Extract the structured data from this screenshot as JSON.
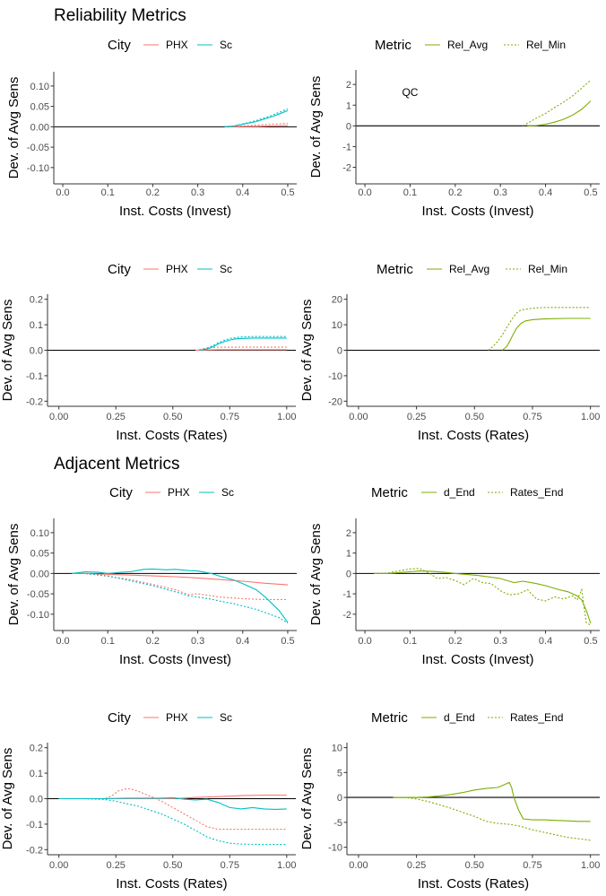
{
  "titles": [
    {
      "text": "Reliability Metrics"
    },
    {
      "text": "Adjacent Metrics"
    }
  ],
  "colors": {
    "PHX": "#F8766D",
    "Sc": "#00BFC4",
    "metric": "#7CAE00",
    "zero_line": "#000000",
    "axis": "#333333"
  },
  "chart_data": [
    {
      "type": "line",
      "panel": "reliability-invest-city",
      "xlabel": "Inst. Costs (Invest)",
      "ylabel": "Dev. of Avg Sens",
      "xlim": [
        -0.02,
        0.52
      ],
      "ylim": [
        -0.14,
        0.135
      ],
      "xticks": [
        "0.0",
        "0.1",
        "0.2",
        "0.3",
        "0.4",
        "0.5"
      ],
      "yticks": [
        "-0.10",
        "-0.05",
        "0.00",
        "0.05",
        "0.10"
      ],
      "legend": {
        "title": "City",
        "entries": [
          "PHX",
          "Sc"
        ],
        "position": "top"
      },
      "series": [
        {
          "name": "PHX",
          "style": "solid",
          "x": [
            0.37,
            0.4,
            0.43,
            0.46,
            0.5
          ],
          "y": [
            0,
            0.0005,
            0.001,
            0.002,
            0.003
          ]
        },
        {
          "name": "PHX",
          "style": "dotted",
          "x": [
            0.37,
            0.4,
            0.43,
            0.46,
            0.5
          ],
          "y": [
            0,
            0.002,
            0.004,
            0.006,
            0.008
          ]
        },
        {
          "name": "Sc",
          "style": "solid",
          "x": [
            0.36,
            0.38,
            0.4,
            0.43,
            0.46,
            0.48,
            0.5
          ],
          "y": [
            0,
            0.002,
            0.006,
            0.013,
            0.023,
            0.031,
            0.04
          ]
        },
        {
          "name": "Sc",
          "style": "dotted",
          "x": [
            0.36,
            0.38,
            0.4,
            0.43,
            0.46,
            0.48,
            0.5
          ],
          "y": [
            0,
            0.002,
            0.007,
            0.015,
            0.026,
            0.035,
            0.044
          ]
        }
      ]
    },
    {
      "type": "line",
      "panel": "reliability-invest-metric",
      "xlabel": "Inst. Costs (Invest)",
      "ylabel": "Dev. of Avg Sens",
      "xlim": [
        -0.02,
        0.52
      ],
      "ylim": [
        -2.8,
        2.7
      ],
      "xticks": [
        "0.0",
        "0.1",
        "0.2",
        "0.3",
        "0.4",
        "0.5"
      ],
      "yticks": [
        "-2",
        "-1",
        "0",
        "1",
        "2"
      ],
      "legend": {
        "title": "Metric",
        "entries": [
          "Rel_Avg",
          "Rel_Min"
        ],
        "position": "top"
      },
      "annotations": [
        {
          "text": "QC",
          "x": 0.1,
          "y": 1.45
        }
      ],
      "series": [
        {
          "name": "Rel_Avg",
          "style": "solid",
          "x": [
            0.36,
            0.38,
            0.4,
            0.42,
            0.44,
            0.46,
            0.48,
            0.5
          ],
          "y": [
            0,
            0.02,
            0.08,
            0.18,
            0.32,
            0.52,
            0.8,
            1.2
          ]
        },
        {
          "name": "Rel_Min",
          "style": "dotted",
          "x": [
            0.35,
            0.38,
            0.4,
            0.42,
            0.44,
            0.46,
            0.48,
            0.5
          ],
          "y": [
            0,
            0.38,
            0.6,
            0.88,
            1.15,
            1.45,
            1.82,
            2.2
          ]
        }
      ]
    },
    {
      "type": "line",
      "panel": "reliability-rates-city",
      "xlabel": "Inst. Costs (Rates)",
      "ylabel": "Dev. of Avg Sens",
      "xlim": [
        -0.05,
        1.04
      ],
      "ylim": [
        -0.22,
        0.22
      ],
      "xticks": [
        "0.00",
        "0.25",
        "0.50",
        "0.75",
        "1.00"
      ],
      "yticks": [
        "-0.2",
        "-0.1",
        "0.0",
        "0.1",
        "0.2"
      ],
      "legend": {
        "title": "City",
        "entries": [
          "PHX",
          "Sc"
        ],
        "position": "top"
      },
      "series": [
        {
          "name": "PHX",
          "style": "solid",
          "x": [
            0.6,
            0.65,
            0.7,
            0.8,
            1.0
          ],
          "y": [
            0,
            0.001,
            0.002,
            0.002,
            0.002
          ]
        },
        {
          "name": "PHX",
          "style": "dotted",
          "x": [
            0.6,
            0.65,
            0.7,
            0.8,
            1.0
          ],
          "y": [
            0,
            0.008,
            0.012,
            0.012,
            0.012
          ]
        },
        {
          "name": "Sc",
          "style": "solid",
          "x": [
            0.62,
            0.65,
            0.68,
            0.7,
            0.73,
            0.75,
            0.78,
            0.8,
            0.85,
            0.9,
            0.95,
            1.0
          ],
          "y": [
            0,
            0.005,
            0.015,
            0.025,
            0.035,
            0.04,
            0.045,
            0.046,
            0.048,
            0.048,
            0.048,
            0.048
          ]
        },
        {
          "name": "Sc",
          "style": "dotted",
          "x": [
            0.62,
            0.65,
            0.68,
            0.7,
            0.73,
            0.75,
            0.78,
            0.8,
            0.85,
            0.9,
            0.95,
            1.0
          ],
          "y": [
            0,
            0.008,
            0.02,
            0.03,
            0.04,
            0.046,
            0.05,
            0.052,
            0.054,
            0.054,
            0.054,
            0.054
          ]
        }
      ]
    },
    {
      "type": "line",
      "panel": "reliability-rates-metric",
      "xlabel": "Inst. Costs (Rates)",
      "ylabel": "Dev. of Avg Sens",
      "xlim": [
        -0.05,
        1.04
      ],
      "ylim": [
        -22,
        22
      ],
      "xticks": [
        "0.00",
        "0.25",
        "0.50",
        "0.75",
        "1.00"
      ],
      "yticks": [
        "-20",
        "-10",
        "0",
        "10",
        "20"
      ],
      "legend": {
        "title": "Metric",
        "entries": [
          "Rel_Avg",
          "Rel_Min"
        ],
        "position": "top"
      },
      "series": [
        {
          "name": "Rel_Avg",
          "style": "solid",
          "x": [
            0.62,
            0.64,
            0.66,
            0.68,
            0.7,
            0.72,
            0.75,
            0.8,
            0.9,
            1.0
          ],
          "y": [
            0,
            1.5,
            5,
            8.5,
            10.5,
            11.5,
            12,
            12.3,
            12.5,
            12.5
          ]
        },
        {
          "name": "Rel_Min",
          "style": "dotted",
          "x": [
            0.56,
            0.58,
            0.6,
            0.62,
            0.64,
            0.66,
            0.68,
            0.7,
            0.75,
            0.8,
            0.9,
            1.0
          ],
          "y": [
            0,
            1.5,
            3.5,
            6,
            9,
            12,
            14.5,
            15.8,
            16.5,
            16.8,
            16.8,
            16.8
          ]
        }
      ]
    },
    {
      "type": "line",
      "panel": "adjacent-invest-city",
      "xlabel": "Inst. Costs (Invest)",
      "ylabel": "Dev. of Avg Sens",
      "xlim": [
        -0.02,
        0.52
      ],
      "ylim": [
        -0.14,
        0.135
      ],
      "xticks": [
        "0.0",
        "0.1",
        "0.2",
        "0.3",
        "0.4",
        "0.5"
      ],
      "yticks": [
        "-0.10",
        "-0.05",
        "0.00",
        "0.05",
        "0.10"
      ],
      "legend": {
        "title": "City",
        "entries": [
          "PHX",
          "Sc"
        ],
        "position": "top"
      },
      "series": [
        {
          "name": "PHX",
          "style": "solid",
          "x": [
            0.02,
            0.05,
            0.1,
            0.15,
            0.2,
            0.25,
            0.3,
            0.35,
            0.4,
            0.45,
            0.5
          ],
          "y": [
            0,
            0,
            -0.002,
            -0.004,
            -0.006,
            -0.008,
            -0.011,
            -0.015,
            -0.019,
            -0.024,
            -0.028
          ]
        },
        {
          "name": "PHX",
          "style": "dotted",
          "x": [
            0.02,
            0.05,
            0.1,
            0.15,
            0.2,
            0.25,
            0.28,
            0.3,
            0.35,
            0.4,
            0.45,
            0.5
          ],
          "y": [
            0,
            0,
            -0.007,
            -0.015,
            -0.027,
            -0.04,
            -0.052,
            -0.05,
            -0.058,
            -0.062,
            -0.064,
            -0.064
          ]
        },
        {
          "name": "Sc",
          "style": "solid",
          "x": [
            0.02,
            0.05,
            0.08,
            0.1,
            0.13,
            0.15,
            0.18,
            0.2,
            0.23,
            0.25,
            0.28,
            0.3,
            0.33,
            0.35,
            0.38,
            0.4,
            0.43,
            0.45,
            0.48,
            0.5
          ],
          "y": [
            0,
            0.004,
            0.003,
            0,
            0.003,
            0.004,
            0.01,
            0.011,
            0.009,
            0.01,
            0.007,
            0.006,
            0,
            -0.007,
            -0.016,
            -0.025,
            -0.04,
            -0.058,
            -0.09,
            -0.12
          ]
        },
        {
          "name": "Sc",
          "style": "dotted",
          "x": [
            0.02,
            0.05,
            0.1,
            0.15,
            0.2,
            0.25,
            0.28,
            0.3,
            0.33,
            0.35,
            0.38,
            0.4,
            0.43,
            0.45,
            0.48,
            0.5
          ],
          "y": [
            0,
            0,
            -0.006,
            -0.018,
            -0.03,
            -0.045,
            -0.055,
            -0.058,
            -0.063,
            -0.068,
            -0.074,
            -0.08,
            -0.088,
            -0.096,
            -0.108,
            -0.122
          ]
        }
      ]
    },
    {
      "type": "line",
      "panel": "adjacent-invest-metric",
      "xlabel": "Inst. Costs (Invest)",
      "ylabel": "Dev. of Avg Sens",
      "xlim": [
        -0.02,
        0.52
      ],
      "ylim": [
        -2.8,
        2.7
      ],
      "xticks": [
        "0.0",
        "0.1",
        "0.2",
        "0.3",
        "0.4",
        "0.5"
      ],
      "yticks": [
        "-2",
        "-1",
        "0",
        "1",
        "2"
      ],
      "legend": {
        "title": "Metric",
        "entries": [
          "d_End",
          "Rates_End"
        ],
        "position": "top"
      },
      "series": [
        {
          "name": "d_End",
          "style": "solid",
          "x": [
            0.02,
            0.05,
            0.08,
            0.1,
            0.12,
            0.15,
            0.18,
            0.2,
            0.25,
            0.3,
            0.33,
            0.35,
            0.38,
            0.4,
            0.43,
            0.45,
            0.47,
            0.48,
            0.49,
            0.5
          ],
          "y": [
            0,
            0,
            0.05,
            0.08,
            0.12,
            0.1,
            0.05,
            0,
            -0.1,
            -0.25,
            -0.45,
            -0.38,
            -0.5,
            -0.6,
            -0.8,
            -0.9,
            -1.1,
            -1.3,
            -1.8,
            -2.45
          ]
        },
        {
          "name": "Rates_End",
          "style": "dotted",
          "x": [
            0.02,
            0.05,
            0.08,
            0.1,
            0.12,
            0.14,
            0.16,
            0.18,
            0.2,
            0.22,
            0.24,
            0.26,
            0.28,
            0.3,
            0.32,
            0.34,
            0.36,
            0.38,
            0.4,
            0.42,
            0.44,
            0.46,
            0.47,
            0.48,
            0.49,
            0.5
          ],
          "y": [
            0,
            0.02,
            0.15,
            0.22,
            0.25,
            0.05,
            -0.25,
            -0.2,
            -0.35,
            -0.55,
            -0.25,
            -0.45,
            -0.5,
            -0.85,
            -1.05,
            -1.0,
            -0.8,
            -1.25,
            -1.35,
            -1.15,
            -1.25,
            -1.1,
            -1.3,
            -0.8,
            -2.4,
            -2.55
          ]
        }
      ]
    },
    {
      "type": "line",
      "panel": "adjacent-rates-city",
      "xlabel": "Inst. Costs (Rates)",
      "ylabel": "Dev. of Avg Sens",
      "xlim": [
        -0.05,
        1.04
      ],
      "ylim": [
        -0.22,
        0.22
      ],
      "xticks": [
        "0.00",
        "0.25",
        "0.50",
        "0.75",
        "1.00"
      ],
      "yticks": [
        "-0.2",
        "-0.1",
        "0.0",
        "0.1",
        "0.2"
      ],
      "legend": {
        "title": "City",
        "entries": [
          "PHX",
          "Sc"
        ],
        "position": "top"
      },
      "series": [
        {
          "name": "PHX",
          "style": "solid",
          "x": [
            0.0,
            0.1,
            0.2,
            0.3,
            0.4,
            0.5,
            0.6,
            0.7,
            0.8,
            0.9,
            1.0
          ],
          "y": [
            0,
            0,
            0,
            0,
            0,
            0,
            0.005,
            0.008,
            0.012,
            0.014,
            0.014
          ]
        },
        {
          "name": "PHX",
          "style": "dotted",
          "x": [
            0.0,
            0.1,
            0.2,
            0.23,
            0.26,
            0.3,
            0.33,
            0.36,
            0.4,
            0.45,
            0.5,
            0.55,
            0.6,
            0.65,
            0.7,
            0.8,
            0.9,
            1.0
          ],
          "y": [
            0,
            0,
            0,
            0.01,
            0.03,
            0.04,
            0.035,
            0.025,
            0.01,
            -0.01,
            -0.035,
            -0.06,
            -0.085,
            -0.11,
            -0.12,
            -0.12,
            -0.12,
            -0.12
          ]
        },
        {
          "name": "Sc",
          "style": "solid",
          "x": [
            0.0,
            0.1,
            0.2,
            0.3,
            0.4,
            0.45,
            0.5,
            0.55,
            0.6,
            0.65,
            0.7,
            0.75,
            0.8,
            0.85,
            0.9,
            0.95,
            1.0
          ],
          "y": [
            0,
            0,
            0,
            0.002,
            0.002,
            0.002,
            0.004,
            -0.002,
            -0.005,
            -0.002,
            -0.015,
            -0.035,
            -0.04,
            -0.035,
            -0.04,
            -0.042,
            -0.04
          ]
        },
        {
          "name": "Sc",
          "style": "dotted",
          "x": [
            0.0,
            0.1,
            0.2,
            0.25,
            0.3,
            0.35,
            0.4,
            0.45,
            0.5,
            0.55,
            0.6,
            0.65,
            0.7,
            0.75,
            0.8,
            0.9,
            1.0
          ],
          "y": [
            0,
            0,
            -0.003,
            -0.01,
            -0.02,
            -0.03,
            -0.045,
            -0.06,
            -0.08,
            -0.1,
            -0.125,
            -0.15,
            -0.165,
            -0.175,
            -0.178,
            -0.18,
            -0.18
          ]
        }
      ]
    },
    {
      "type": "line",
      "panel": "adjacent-rates-metric",
      "xlabel": "Inst. Costs (Rates)",
      "ylabel": "Dev. of Avg Sens",
      "xlim": [
        -0.05,
        1.04
      ],
      "ylim": [
        -11.5,
        11
      ],
      "xticks": [
        "0.00",
        "0.25",
        "0.50",
        "0.75",
        "1.00"
      ],
      "yticks": [
        "-10",
        "-5",
        "0",
        "5",
        "10"
      ],
      "legend": {
        "title": "Metric",
        "entries": [
          "d_End",
          "Rates_End"
        ],
        "position": "top"
      },
      "series": [
        {
          "name": "d_End",
          "style": "solid",
          "x": [
            0.15,
            0.2,
            0.25,
            0.3,
            0.35,
            0.4,
            0.45,
            0.5,
            0.55,
            0.6,
            0.63,
            0.65,
            0.66,
            0.67,
            0.69,
            0.71,
            0.75,
            0.8,
            0.85,
            0.9,
            0.95,
            1.0
          ],
          "y": [
            0,
            0,
            0,
            0.1,
            0.3,
            0.6,
            1.0,
            1.5,
            1.8,
            2.0,
            2.6,
            3.0,
            2.0,
            0,
            -2.5,
            -4.3,
            -4.5,
            -4.5,
            -4.6,
            -4.7,
            -4.8,
            -4.8
          ]
        },
        {
          "name": "Rates_End",
          "style": "dotted",
          "x": [
            0.15,
            0.2,
            0.25,
            0.3,
            0.35,
            0.4,
            0.45,
            0.5,
            0.55,
            0.6,
            0.65,
            0.7,
            0.75,
            0.8,
            0.85,
            0.9,
            0.95,
            1.0
          ],
          "y": [
            0,
            0,
            -0.3,
            -0.8,
            -1.5,
            -2.2,
            -3.0,
            -3.8,
            -4.8,
            -5.2,
            -5.4,
            -5.8,
            -6.5,
            -7.0,
            -7.5,
            -8.0,
            -8.3,
            -8.6
          ]
        }
      ]
    }
  ]
}
